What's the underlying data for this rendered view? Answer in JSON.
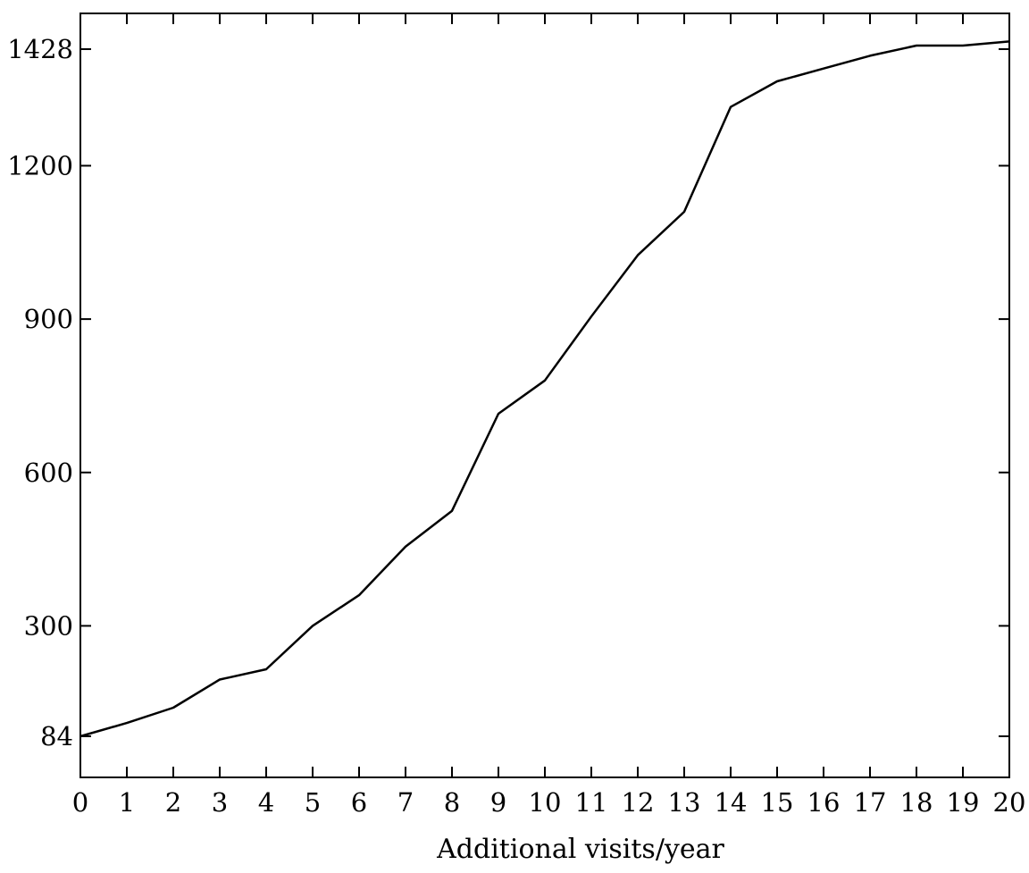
{
  "chart_data": {
    "type": "line",
    "title": "",
    "xlabel": "Additional visits/year",
    "ylabel": "",
    "x": [
      0,
      1,
      2,
      3,
      4,
      5,
      6,
      7,
      8,
      9,
      10,
      11,
      12,
      13,
      14,
      15,
      16,
      17,
      18,
      19,
      20
    ],
    "series": [
      {
        "values": [
          84,
          110,
          140,
          195,
          215,
          300,
          360,
          455,
          525,
          715,
          780,
          905,
          1025,
          1110,
          1315,
          1365,
          1390,
          1415,
          1435,
          1435,
          1443
        ]
      }
    ],
    "xlim": [
      0,
      20
    ],
    "ylim": [
      0,
      1500
    ],
    "x_ticks": [
      0,
      1,
      2,
      3,
      4,
      5,
      6,
      7,
      8,
      9,
      10,
      11,
      12,
      13,
      14,
      15,
      16,
      17,
      18,
      19,
      20
    ],
    "y_ticks": [
      84,
      300,
      600,
      900,
      1200,
      1428
    ],
    "grid": false,
    "legend": "none",
    "line_color": "#000000"
  }
}
